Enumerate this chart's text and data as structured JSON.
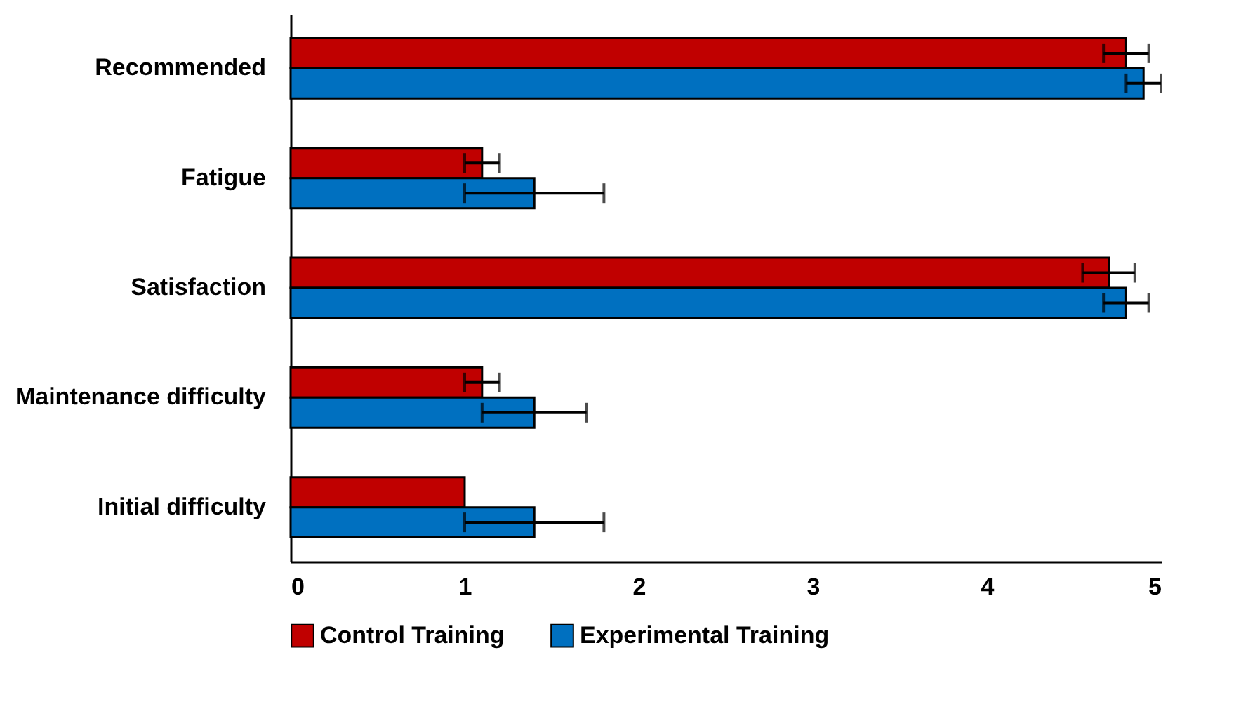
{
  "chart_data": {
    "type": "bar",
    "orientation": "horizontal",
    "categories": [
      "Recommended",
      "Fatigue",
      "Satisfaction",
      "Maintenance difficulty",
      "Initial difficulty"
    ],
    "series": [
      {
        "name": "Control Training",
        "color": "#c00000",
        "values": [
          4.8,
          1.1,
          4.7,
          1.1,
          1.0
        ],
        "errors": [
          0.13,
          0.1,
          0.15,
          0.1,
          null
        ]
      },
      {
        "name": "Experimental Training",
        "color": "#0070c0",
        "values": [
          4.9,
          1.4,
          4.8,
          1.4,
          1.4
        ],
        "errors": [
          0.1,
          0.4,
          0.13,
          0.3,
          0.4
        ]
      }
    ],
    "xlim": [
      0,
      5
    ],
    "xticks": [
      0,
      1,
      2,
      3,
      4,
      5
    ],
    "grid": false,
    "legend": "bottom"
  }
}
